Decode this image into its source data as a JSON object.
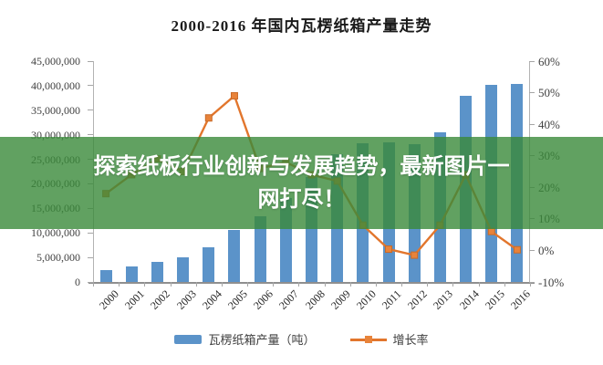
{
  "chart_title": "2000-2016 年国内瓦楞纸箱产量走势",
  "banner": {
    "headline": "探索纸板行业创新与发展趋势，最新图片一网打尽！",
    "background": "#3a8a3a",
    "text_color": "#ffffff"
  },
  "legend": {
    "production_label": "瓦楞纸箱产量（吨）",
    "growth_label": "增长率"
  },
  "colors": {
    "bar": "#5b93c9",
    "line": "#e2762d",
    "marker_fill": "#e8833a",
    "marker_stroke": "#c96a28",
    "axis": "#a6a6a6",
    "label_text": "#3f3f3f"
  },
  "chart_data": {
    "type": "bar",
    "title": "2000-2016 年国内瓦楞纸箱产量走势",
    "categories": [
      "2000",
      "2001",
      "2002",
      "2003",
      "2004",
      "2005",
      "2006",
      "2007",
      "2008",
      "2009",
      "2010",
      "2011",
      "2012",
      "2013",
      "2014",
      "2015",
      "2016"
    ],
    "series": [
      {
        "name": "瓦楞纸箱产量（吨）",
        "type": "bar",
        "axis": "left",
        "values": [
          2500000,
          3100000,
          4000000,
          5000000,
          7100000,
          10600000,
          13400000,
          17200000,
          21400000,
          26100000,
          28300000,
          28400000,
          28000000,
          30500000,
          37900000,
          40200000,
          40300000
        ]
      },
      {
        "name": "增长率",
        "type": "line",
        "axis": "right",
        "unit": "%",
        "values": [
          18,
          24,
          29,
          25,
          42,
          49,
          26,
          28,
          24,
          22,
          8,
          0.4,
          -1.5,
          8,
          24,
          6,
          0.2
        ]
      }
    ],
    "left_axis": {
      "min": 0,
      "max": 45000000,
      "step": 5000000,
      "tick_labels": [
        "0",
        "5,000,000",
        "10,000,000",
        "15,000,000",
        "20,000,000",
        "25,000,000",
        "30,000,000",
        "35,000,000",
        "40,000,000",
        "45,000,000"
      ]
    },
    "right_axis": {
      "min": -10,
      "max": 60,
      "step": 10,
      "tick_labels": [
        "-10%",
        "0%",
        "10%",
        "20%",
        "30%",
        "40%",
        "50%",
        "60%"
      ]
    },
    "grid": false,
    "legend_position": "bottom"
  }
}
